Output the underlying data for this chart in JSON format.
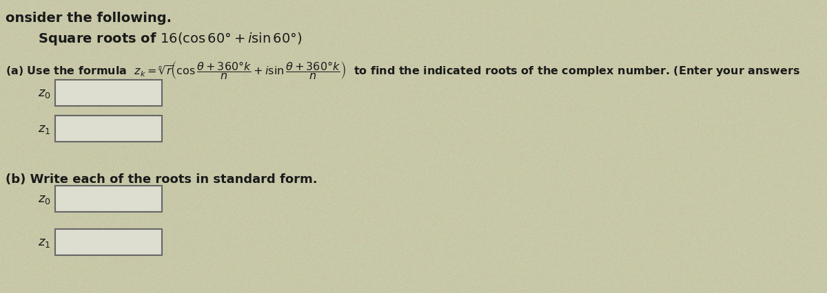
{
  "bg_color": "#c8c8a8",
  "text_color": "#1a1a1a",
  "title_line1": "onsider the following.",
  "title_line2": "Square roots of 16(cos 60° + ℓ sin 60°)",
  "part_b_label": "(b) Write each of the roots in standard form.",
  "fig_width": 12.0,
  "fig_height": 4.27,
  "font_size_title": 14,
  "font_size_body": 13,
  "font_size_formula": 13,
  "box_face": "#deded0",
  "box_edge": "#555555"
}
